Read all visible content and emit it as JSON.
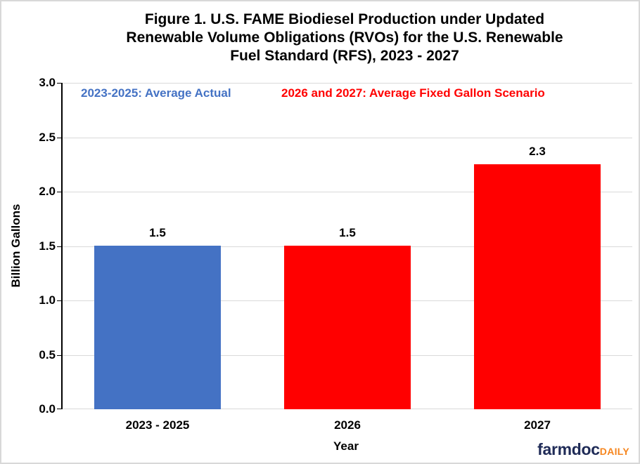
{
  "header": {
    "title_lines": [
      "Figure 1. U.S. FAME Biodiesel Production under Updated",
      "Renewable Volume Obligations (RVOs) for the U.S. Renewable",
      "Fuel Standard (RFS), 2023 - 2027"
    ]
  },
  "annotations": {
    "blue": {
      "text": "2023-2025: Average Actual",
      "color": "#4472C4"
    },
    "red": {
      "text": "2026 and 2027: Average Fixed Gallon Scenario",
      "color": "#FF0000"
    }
  },
  "chart_data": {
    "type": "bar",
    "title": "Figure 1. U.S. FAME Biodiesel Production under Updated Renewable Volume Obligations (RVOs) for the U.S. Renewable Fuel Standard (RFS), 2023 - 2027",
    "xlabel": "Year",
    "ylabel": "Billion Gallons",
    "ylim": [
      0,
      3.0
    ],
    "y_ticks": [
      "3.0",
      "2.5",
      "2.0",
      "1.5",
      "1.0",
      "0.5",
      "0.0"
    ],
    "grid": "horizontal",
    "legend_position": "colored text annotations at top of plot",
    "categories": [
      "2023 - 2025",
      "2026",
      "2027"
    ],
    "points": [
      {
        "category": "2023 - 2025",
        "value": 1.5,
        "label": "1.5",
        "color": "#4472C4",
        "series": "Average Actual"
      },
      {
        "category": "2026",
        "value": 1.5,
        "label": "1.5",
        "color": "#FF0000",
        "series": "Average Fixed Gallon Scenario"
      },
      {
        "category": "2027",
        "value": 2.25,
        "label": "2.3",
        "color": "#FF0000",
        "series": "Average Fixed Gallon Scenario"
      }
    ]
  },
  "branding": {
    "farmdoc": "farmdoc",
    "daily": "DAILY",
    "navy": "#1F2B57",
    "orange": "#F6861F"
  }
}
